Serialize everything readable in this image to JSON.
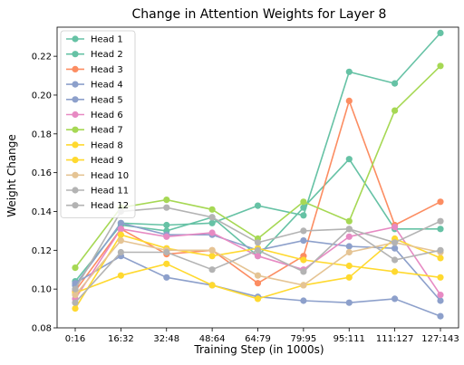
{
  "chart_data": {
    "type": "line",
    "title": "Change in Attention Weights for Layer 8",
    "xlabel": "Training Step (in 1000s)",
    "ylabel": "Weight Change",
    "categories": [
      "0:16",
      "16:32",
      "32:48",
      "48:64",
      "64:79",
      "79:95",
      "95:111",
      "111:127",
      "127:143"
    ],
    "ylim": [
      0.08,
      0.235
    ],
    "yticks": [
      "0.08",
      "0.10",
      "0.12",
      "0.14",
      "0.16",
      "0.18",
      "0.20",
      "0.22"
    ],
    "ytick_values": [
      0.08,
      0.1,
      0.12,
      0.14,
      0.16,
      0.18,
      0.2,
      0.22
    ],
    "grid": false,
    "legend_position": "top-left",
    "series": [
      {
        "name": "Head 1",
        "color": "#66c2a5",
        "values": [
          0.102,
          0.134,
          0.133,
          0.134,
          0.143,
          0.138,
          0.212,
          0.206,
          0.232
        ]
      },
      {
        "name": "Head 2",
        "color": "#66c2a5",
        "values": [
          0.104,
          0.133,
          0.13,
          0.137,
          0.117,
          0.142,
          0.167,
          0.131,
          0.131
        ]
      },
      {
        "name": "Head 3",
        "color": "#fc8d62",
        "values": [
          0.099,
          0.131,
          0.118,
          0.12,
          0.103,
          0.117,
          0.197,
          0.133,
          0.145
        ]
      },
      {
        "name": "Head 4",
        "color": "#8da0cb",
        "values": [
          0.102,
          0.134,
          0.128,
          0.128,
          0.12,
          0.125,
          0.122,
          0.121,
          0.094
        ]
      },
      {
        "name": "Head 5",
        "color": "#8da0cb",
        "values": [
          0.103,
          0.117,
          0.106,
          0.102,
          0.096,
          0.094,
          0.093,
          0.095,
          0.086
        ]
      },
      {
        "name": "Head 6",
        "color": "#e78ac3",
        "values": [
          0.095,
          0.131,
          0.127,
          0.129,
          0.117,
          0.11,
          0.127,
          0.132,
          0.097
        ]
      },
      {
        "name": "Head 7",
        "color": "#a6d854",
        "values": [
          0.111,
          0.142,
          0.146,
          0.141,
          0.126,
          0.145,
          0.135,
          0.192,
          0.215
        ]
      },
      {
        "name": "Head 8",
        "color": "#ffd92f",
        "values": [
          0.09,
          0.128,
          0.121,
          0.117,
          0.121,
          0.115,
          0.112,
          0.109,
          0.106
        ]
      },
      {
        "name": "Head 9",
        "color": "#ffd92f",
        "values": [
          0.098,
          0.107,
          0.113,
          0.102,
          0.095,
          0.102,
          0.106,
          0.126,
          0.116
        ]
      },
      {
        "name": "Head 10",
        "color": "#e5c494",
        "values": [
          0.097,
          0.125,
          0.12,
          0.12,
          0.107,
          0.102,
          0.119,
          0.124,
          0.119
        ]
      },
      {
        "name": "Head 11",
        "color": "#b3b3b3",
        "values": [
          0.093,
          0.119,
          0.119,
          0.11,
          0.12,
          0.109,
          0.131,
          0.115,
          0.12
        ]
      },
      {
        "name": "Head 12",
        "color": "#b3b3b3",
        "values": [
          0.1,
          0.14,
          0.142,
          0.137,
          0.124,
          0.13,
          0.131,
          0.124,
          0.135
        ]
      }
    ]
  }
}
